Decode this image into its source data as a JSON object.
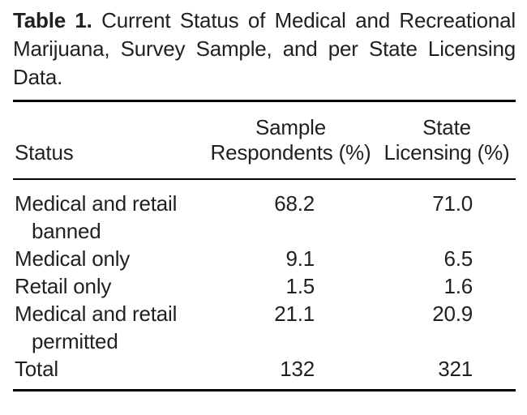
{
  "page": {
    "background_color": "#ffffff",
    "text_color": "#231f20",
    "rule_color": "#000000"
  },
  "table": {
    "title_label": "Table 1.",
    "title_text": "Current Status of Medical and Recreational Marijuana, Survey Sample, and per State Licensing Data.",
    "columns": {
      "status": "Status",
      "sample": "Sample Respondents (%)",
      "state": "State Licensing (%)"
    },
    "rows": [
      {
        "status": "Medical and retail banned",
        "sample": "68.2",
        "state": "71.0"
      },
      {
        "status": "Medical only",
        "sample": "9.1",
        "state": "6.5"
      },
      {
        "status": "Retail only",
        "sample": "1.5",
        "state": "1.6"
      },
      {
        "status": "Medical and retail permitted",
        "sample": "21.1",
        "state": "20.9"
      },
      {
        "status": "Total",
        "sample": "132",
        "state": "321"
      }
    ]
  }
}
